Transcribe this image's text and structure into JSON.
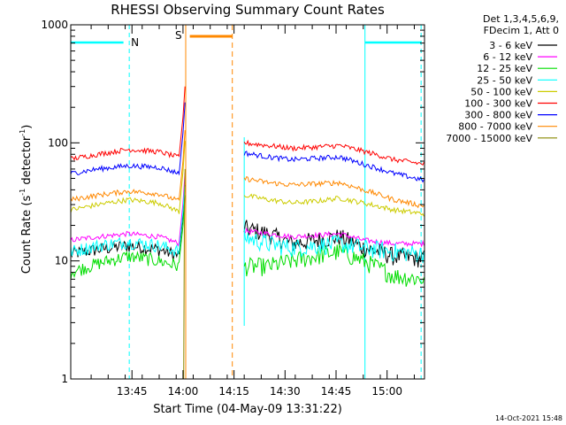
{
  "chart_data": {
    "type": "line",
    "title": "RHESSI Observing Summary Count Rates",
    "xlabel": "Start Time (04-May-09 13:31:22)",
    "ylabel": "Count Rate (s⁻¹ detector⁻¹)",
    "ylabel_base": "Count Rate (s",
    "ylabel_mid": " detector",
    "ylabel_end": ")",
    "ylabel_exp": "-1",
    "y_scale": "log",
    "ylim": [
      1,
      1000
    ],
    "y_ticks": [
      "1",
      "10",
      "100",
      "1000"
    ],
    "xlim_minutes": [
      -4,
      100
    ],
    "x_ticks": [
      {
        "label": "13:45",
        "minutes": 14
      },
      {
        "label": "14:00",
        "minutes": 29
      },
      {
        "label": "14:15",
        "minutes": 44
      },
      {
        "label": "14:30",
        "minutes": 59
      },
      {
        "label": "14:45",
        "minutes": 74
      },
      {
        "label": "15:00",
        "minutes": 89
      }
    ],
    "legend_position": "right",
    "legend_header": [
      "Det 1,3,4,5,6,9,",
      "FDecim 1, Att 0"
    ],
    "series": [
      {
        "name": "3 - 6 keV",
        "color": "#000000",
        "before": [
          11.5,
          12.5,
          13.5,
          12.5,
          11
        ],
        "after": [
          19,
          17,
          14,
          15,
          16,
          13,
          11,
          10.5
        ]
      },
      {
        "name": "6 - 12 keV",
        "color": "#ff00ff",
        "before": [
          15,
          16,
          17,
          16,
          14
        ],
        "after": [
          18,
          17,
          16,
          16.5,
          17,
          15,
          14,
          14
        ]
      },
      {
        "name": "12 - 25 keV",
        "color": "#00dd00",
        "before": [
          8,
          9.5,
          11,
          10,
          9
        ],
        "after": [
          9,
          9,
          10,
          11,
          12,
          10,
          7.5,
          7
        ]
      },
      {
        "name": "25 - 50 keV",
        "color": "#00ffff",
        "before": [
          12,
          13.5,
          14.5,
          13.5,
          12
        ],
        "after": [
          16,
          14,
          13,
          13.5,
          14,
          13,
          12,
          11.5
        ]
      },
      {
        "name": "50 - 100 keV",
        "color": "#cccc00",
        "before": [
          27,
          30,
          33,
          31,
          26
        ],
        "after": [
          36,
          33,
          31,
          32,
          34,
          31,
          27,
          25
        ]
      },
      {
        "name": "100 - 300 keV",
        "color": "#ff0000",
        "before": [
          73,
          80,
          88,
          84,
          75
        ],
        "after": [
          100,
          95,
          90,
          92,
          95,
          85,
          72,
          66
        ]
      },
      {
        "name": "300 - 800 keV",
        "color": "#0000ff",
        "before": [
          55,
          60,
          64,
          62,
          55
        ],
        "after": [
          82,
          76,
          72,
          74,
          76,
          66,
          55,
          48
        ]
      },
      {
        "name": "800 - 7000 keV",
        "color": "#ff8800",
        "before": [
          33,
          36,
          39,
          37,
          32
        ],
        "after": [
          50,
          46,
          44,
          45,
          46,
          40,
          33,
          29
        ]
      },
      {
        "name": "7000 - 15000 keV",
        "color": "#888800",
        "before": [],
        "after": []
      }
    ],
    "x_before_minutes": [
      -4,
      4,
      13,
      22,
      28
    ],
    "x_after_minutes": [
      47,
      54,
      61,
      68,
      75,
      82,
      91,
      100
    ],
    "annotations": [
      {
        "label": "N",
        "color": "#00ffff"
      },
      {
        "label": "S",
        "color": "#ff8800"
      }
    ],
    "timestamp": "14-Oct-2021 15:48"
  }
}
